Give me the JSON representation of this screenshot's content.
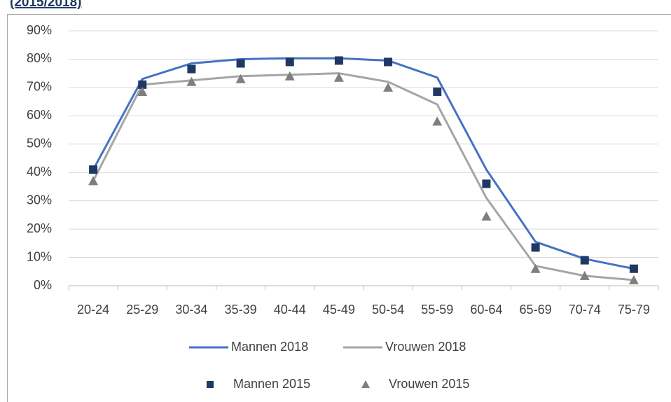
{
  "chart_data": {
    "type": "line",
    "title": "(2015/2018)",
    "categories": [
      "20-24",
      "25-29",
      "30-34",
      "35-39",
      "40-44",
      "45-49",
      "50-54",
      "55-59",
      "60-64",
      "65-69",
      "70-74",
      "75-79"
    ],
    "series": [
      {
        "name": "Mannen 2018",
        "color": "#4472c4",
        "style": "line",
        "values": [
          41,
          73,
          78.5,
          80,
          80.3,
          80.3,
          79.5,
          73.5,
          41,
          15.5,
          9.5,
          6
        ]
      },
      {
        "name": "Vrouwen 2018",
        "color": "#a5a5a5",
        "style": "line",
        "values": [
          37,
          71,
          72.5,
          74,
          74.5,
          75,
          72,
          64,
          31,
          7,
          3.5,
          2
        ]
      },
      {
        "name": "Mannen 2015",
        "color": "#1f3864",
        "style": "square",
        "values": [
          41,
          71,
          76.5,
          78.5,
          79,
          79.5,
          79,
          68.5,
          36,
          13.5,
          9,
          6
        ]
      },
      {
        "name": "Vrouwen 2015",
        "color": "#7f7f7f",
        "style": "triangle",
        "values": [
          37,
          68.5,
          72,
          73,
          74,
          73.5,
          70,
          58,
          24.5,
          6,
          3.5,
          2
        ]
      }
    ],
    "ylim": [
      0,
      90
    ],
    "yticks": [
      {
        "value": 0,
        "label": "0%"
      },
      {
        "value": 10,
        "label": "10%"
      },
      {
        "value": 20,
        "label": "20%"
      },
      {
        "value": 30,
        "label": "30%"
      },
      {
        "value": 40,
        "label": "40%"
      },
      {
        "value": 50,
        "label": "50%"
      },
      {
        "value": 60,
        "label": "60%"
      },
      {
        "value": 70,
        "label": "70%"
      },
      {
        "value": 80,
        "label": "80%"
      },
      {
        "value": 90,
        "label": "90%"
      }
    ],
    "grid": true
  }
}
